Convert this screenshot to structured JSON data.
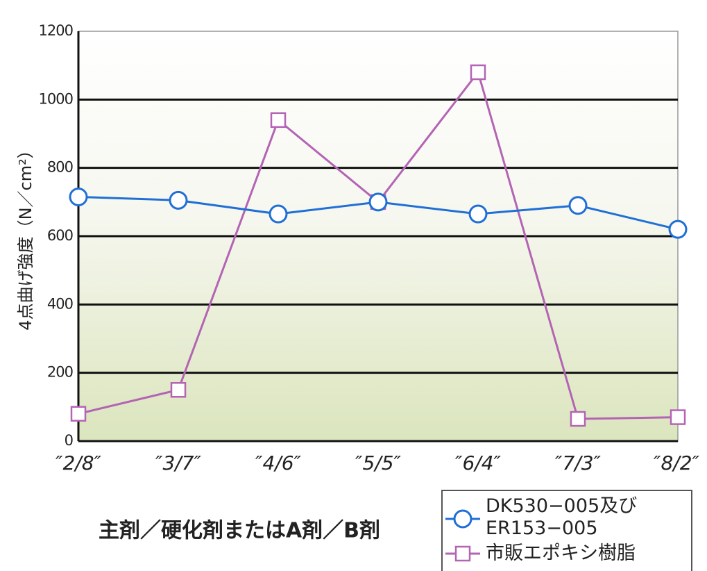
{
  "chart_data": {
    "type": "line",
    "y_label": "4点曲げ強度（N／cm²）",
    "x_label": "主剤／硬化剤またはA剤／B剤",
    "categories": [
      "″2/8″",
      "″3/7″",
      "″4/6″",
      "″5/5″",
      "″6/4″",
      "″7/3″",
      "″8/2″"
    ],
    "series": [
      {
        "name": "DK530−005及び\nER153−005",
        "color": "#1f6fd6",
        "marker": "circle",
        "values": [
          715,
          705,
          665,
          700,
          665,
          690,
          620
        ]
      },
      {
        "name": "市販エポキシ樹脂",
        "color": "#b364b3",
        "marker": "square",
        "values": [
          80,
          150,
          940,
          700,
          1080,
          65,
          70
        ]
      }
    ],
    "ylim": [
      0,
      1200
    ],
    "yticks": [
      0,
      200,
      400,
      600,
      800,
      1000,
      1200
    ],
    "grid": true
  }
}
